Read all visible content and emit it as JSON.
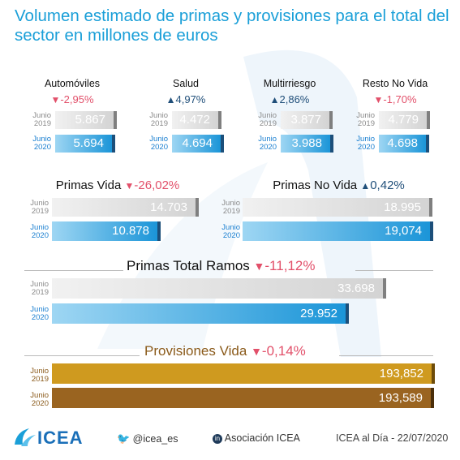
{
  "title": "Volumen estimado de primas y provisiones para el total del sector en millones de euros",
  "year_labels": {
    "y2019_a": "Junio",
    "y2019_b": "2019",
    "y2020_a": "Junio",
    "y2020_b": "2020"
  },
  "colors": {
    "title": "#1a9fd8",
    "down": "#e2506a",
    "up": "#1f4e79",
    "bar_2019": "#d3d3d3",
    "bar_2020": "#1b95d8",
    "prov_2019": "#cf9a1f",
    "prov_2020": "#9a6420"
  },
  "icons": {
    "down": "triangle-down-icon",
    "up": "triangle-up-icon",
    "twitter": "twitter-icon",
    "linkedin": "linkedin-icon"
  },
  "chart_data": [
    {
      "type": "bar",
      "title": "Automóviles",
      "change": "-2,95%",
      "direction": "down",
      "categories": [
        "Junio 2019",
        "Junio 2020"
      ],
      "values": [
        5867,
        5694
      ],
      "labels": [
        "5.867",
        "5.694"
      ],
      "xlim": [
        0,
        6300
      ]
    },
    {
      "type": "bar",
      "title": "Salud",
      "change": "4,97%",
      "direction": "up",
      "categories": [
        "Junio 2019",
        "Junio 2020"
      ],
      "values": [
        4472,
        4694
      ],
      "labels": [
        "4.472",
        "4.694"
      ],
      "xlim": [
        0,
        4950
      ]
    },
    {
      "type": "bar",
      "title": "Multirriesgo",
      "change": "2,86%",
      "direction": "up",
      "categories": [
        "Junio 2019",
        "Junio 2020"
      ],
      "values": [
        3877,
        3988
      ],
      "labels": [
        "3.877",
        "3.988"
      ],
      "xlim": [
        0,
        4150
      ]
    },
    {
      "type": "bar",
      "title": "Resto No Vida",
      "change": "-1,70%",
      "direction": "down",
      "categories": [
        "Junio 2019",
        "Junio 2020"
      ],
      "values": [
        4779,
        4698
      ],
      "labels": [
        "4.779",
        "4.698"
      ],
      "xlim": [
        0,
        5150
      ]
    },
    {
      "type": "bar",
      "title": "Primas Vida",
      "change": "-26,02%",
      "direction": "down",
      "categories": [
        "Junio 2019",
        "Junio 2020"
      ],
      "values": [
        14703,
        10878
      ],
      "labels": [
        "14.703",
        "10.878"
      ],
      "xlim": [
        0,
        14703
      ]
    },
    {
      "type": "bar",
      "title": "Primas No Vida",
      "change": "0,42%",
      "direction": "up",
      "categories": [
        "Junio 2019",
        "Junio 2020"
      ],
      "values": [
        18995,
        19074
      ],
      "labels": [
        "18.995",
        "19,074"
      ],
      "xlim": [
        0,
        19074
      ]
    },
    {
      "type": "bar",
      "title": "Primas Total Ramos",
      "change": "-11,12%",
      "direction": "down",
      "categories": [
        "Junio 2019",
        "Junio 2020"
      ],
      "values": [
        33698,
        29952
      ],
      "labels": [
        "33.698",
        "29.952"
      ],
      "xlim": [
        0,
        33698
      ]
    },
    {
      "type": "bar",
      "title": "Provisiones Vida",
      "change": "-0,14%",
      "direction": "down",
      "categories": [
        "Junio 2019",
        "Junio 2020"
      ],
      "values": [
        193852,
        193589
      ],
      "labels": [
        "193,852",
        "193,589"
      ],
      "xlim": [
        0,
        193852
      ]
    }
  ],
  "footer": {
    "logo": "ICEA",
    "twitter": "@icea_es",
    "linkedin": "Asociación ICEA",
    "date": "ICEA al Día - 22/07/2020"
  }
}
